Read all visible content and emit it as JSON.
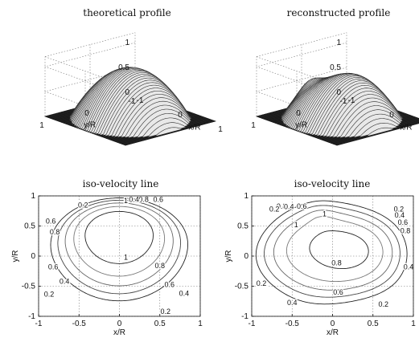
{
  "chart_data": [
    {
      "type": "surface",
      "title": "theoretical profile",
      "xlabel": "x/R",
      "ylabel": "y/R",
      "xlim": [
        -1,
        1
      ],
      "ylim": [
        -1,
        1
      ],
      "zlim": [
        0,
        1.2
      ],
      "x_ticks": [
        "-1",
        "0",
        "1"
      ],
      "y_ticks": [
        "-1",
        "0",
        "1"
      ],
      "z_ticks": [
        "0",
        "0.5",
        "1"
      ],
      "description_data": {
        "shape": "paraboloid",
        "peak_value": 1.0,
        "peak_center": [
          0,
          0
        ],
        "domain": "unit disc"
      },
      "grid": true
    },
    {
      "type": "surface",
      "title": "reconstructed profile",
      "xlabel": "x/R",
      "ylabel": "y/R",
      "xlim": [
        -1,
        1
      ],
      "ylim": [
        -1,
        1
      ],
      "zlim": [
        0,
        1.2
      ],
      "x_ticks": [
        "-1",
        "0",
        "1"
      ],
      "y_ticks": [
        "-1",
        "0",
        "1"
      ],
      "z_ticks": [
        "0",
        "0.5",
        "1"
      ],
      "description_data": {
        "shape": "distorted paraboloid with bumps",
        "peak_value": 1.0,
        "domain": "unit disc"
      },
      "grid": true
    },
    {
      "type": "contour",
      "title": "iso-velocity line",
      "xlabel": "x/R",
      "ylabel": "y/R",
      "xlim": [
        -1,
        1
      ],
      "ylim": [
        -1,
        1
      ],
      "x_ticks": [
        "-1",
        "-0.5",
        "0",
        "0.5",
        "1"
      ],
      "y_ticks": [
        "-1",
        "-0.5",
        "0",
        "0.5",
        "1"
      ],
      "levels": [
        0.2,
        0.4,
        0.6,
        0.8,
        1
      ],
      "contour_labels": [
        {
          "text": "0.2",
          "x": -0.45,
          "y": 0.85
        },
        {
          "text": "0.6",
          "x": -0.85,
          "y": 0.58
        },
        {
          "text": "0.8",
          "x": -0.8,
          "y": 0.4
        },
        {
          "text": "1",
          "x": 0.08,
          "y": 0.92
        },
        {
          "text": "0.8",
          "x": 0.3,
          "y": 0.94
        },
        {
          "text": "0.6",
          "x": 0.48,
          "y": 0.94
        },
        {
          "text": "0.4",
          "x": 0.18,
          "y": 0.94
        },
        {
          "text": "1",
          "x": 0.08,
          "y": -0.02
        },
        {
          "text": "0.6",
          "x": -0.82,
          "y": -0.18
        },
        {
          "text": "0.8",
          "x": 0.5,
          "y": -0.16
        },
        {
          "text": "0.4",
          "x": -0.68,
          "y": -0.42
        },
        {
          "text": "0.6",
          "x": 0.62,
          "y": -0.47
        },
        {
          "text": "0.2",
          "x": -0.87,
          "y": -0.63
        },
        {
          "text": "0.4",
          "x": 0.8,
          "y": -0.62
        },
        {
          "text": "0.2",
          "x": 0.57,
          "y": -0.92
        }
      ],
      "grid": true
    },
    {
      "type": "contour",
      "title": "iso-velocity line",
      "xlabel": "x/R",
      "ylabel": "y/R",
      "xlim": [
        -1,
        1
      ],
      "ylim": [
        -1,
        1
      ],
      "x_ticks": [
        "-1",
        "-0.5",
        "0",
        "0.5",
        "1"
      ],
      "y_ticks": [
        "-1",
        "-0.5",
        "0",
        "0.5",
        "1"
      ],
      "levels": [
        0.2,
        0.4,
        0.6,
        0.8,
        1
      ],
      "contour_labels": [
        {
          "text": "0.8",
          "x": -0.63,
          "y": 0.83
        },
        {
          "text": "0.6",
          "x": -0.38,
          "y": 0.83
        },
        {
          "text": "0.4",
          "x": -0.54,
          "y": 0.82
        },
        {
          "text": "0.2",
          "x": -0.72,
          "y": 0.78
        },
        {
          "text": "1",
          "x": -0.1,
          "y": 0.7
        },
        {
          "text": "1",
          "x": -0.45,
          "y": 0.52
        },
        {
          "text": "0.2",
          "x": 0.82,
          "y": 0.78
        },
        {
          "text": "0.4",
          "x": 0.83,
          "y": 0.68
        },
        {
          "text": "0.6",
          "x": 0.87,
          "y": 0.56
        },
        {
          "text": "0.8",
          "x": 0.9,
          "y": 0.42
        },
        {
          "text": "0.8",
          "x": 0.05,
          "y": -0.11
        },
        {
          "text": "0.4",
          "x": 0.94,
          "y": -0.18
        },
        {
          "text": "0.2",
          "x": -0.88,
          "y": -0.45
        },
        {
          "text": "0.6",
          "x": 0.07,
          "y": -0.6
        },
        {
          "text": "0.4",
          "x": -0.5,
          "y": -0.77
        },
        {
          "text": "0.2",
          "x": 0.63,
          "y": -0.8
        }
      ],
      "grid": true
    }
  ]
}
